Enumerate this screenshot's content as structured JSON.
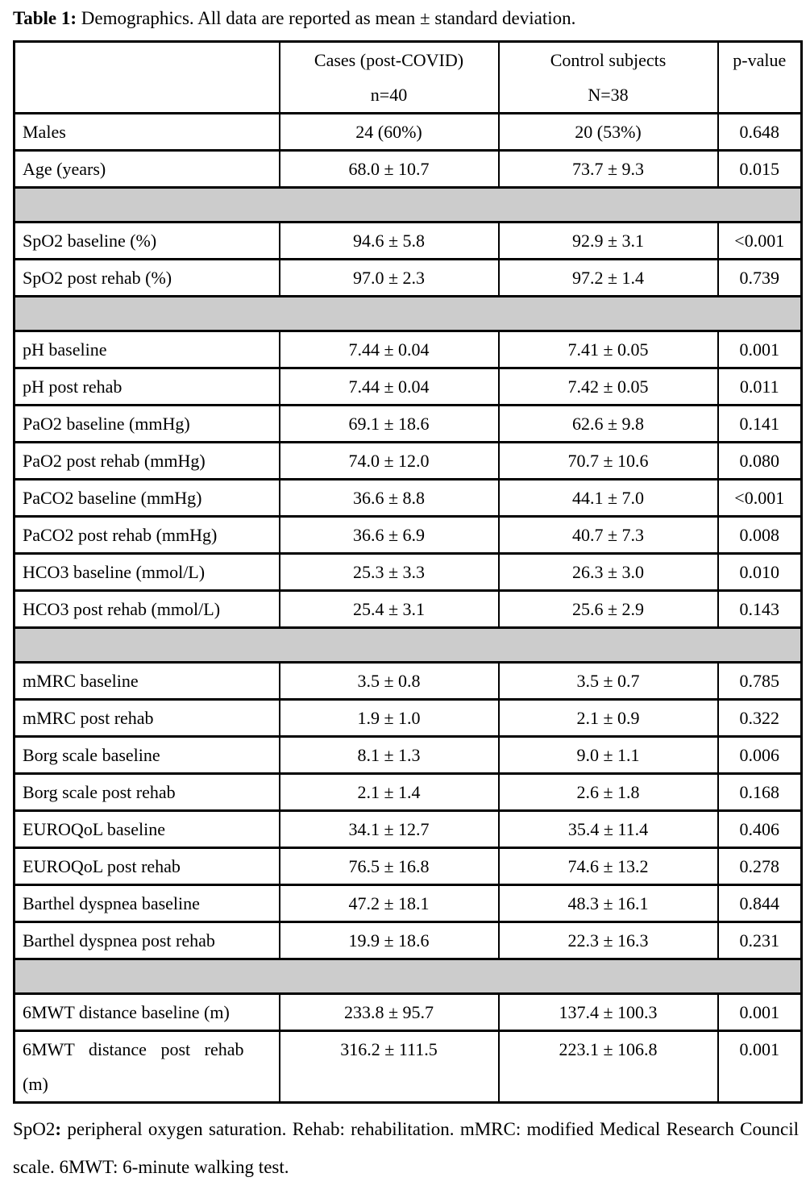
{
  "caption": {
    "label": "Table 1:",
    "text": " Demographics. All data are reported as mean ± standard deviation."
  },
  "table": {
    "columns": [
      {
        "label": "",
        "sub": ""
      },
      {
        "label": "Cases (post-COVID)",
        "sub": "n=40"
      },
      {
        "label": "Control subjects",
        "sub": "N=38"
      },
      {
        "label": "p-value",
        "sub": ""
      }
    ],
    "rows": [
      {
        "type": "data",
        "cells": [
          "Males",
          "24 (60%)",
          "20 (53%)",
          "0.648"
        ]
      },
      {
        "type": "data",
        "cells": [
          "Age (years)",
          "68.0 ± 10.7",
          "73.7 ± 9.3",
          "0.015"
        ]
      },
      {
        "type": "separator"
      },
      {
        "type": "data",
        "cells": [
          "SpO2 baseline (%)",
          "94.6 ± 5.8",
          "92.9 ± 3.1",
          "<0.001"
        ]
      },
      {
        "type": "data",
        "cells": [
          "SpO2 post rehab (%)",
          "97.0 ± 2.3",
          "97.2 ± 1.4",
          "0.739"
        ]
      },
      {
        "type": "separator"
      },
      {
        "type": "data",
        "cells": [
          "pH baseline",
          "7.44 ± 0.04",
          "7.41 ± 0.05",
          "0.001"
        ]
      },
      {
        "type": "data",
        "cells": [
          "pH post rehab",
          "7.44 ± 0.04",
          "7.42 ± 0.05",
          "0.011"
        ]
      },
      {
        "type": "data",
        "cells": [
          "PaO2 baseline (mmHg)",
          "69.1 ± 18.6",
          "62.6 ± 9.8",
          "0.141"
        ]
      },
      {
        "type": "data",
        "cells": [
          "PaO2 post rehab (mmHg)",
          "74.0 ± 12.0",
          "70.7 ± 10.6",
          "0.080"
        ]
      },
      {
        "type": "data",
        "cells": [
          "PaCO2 baseline (mmHg)",
          "36.6 ± 8.8",
          "44.1 ± 7.0",
          "<0.001"
        ]
      },
      {
        "type": "data",
        "cells": [
          "PaCO2 post rehab (mmHg)",
          "36.6 ± 6.9",
          "40.7 ± 7.3",
          "0.008"
        ]
      },
      {
        "type": "data",
        "cells": [
          "HCO3 baseline (mmol/L)",
          "25.3 ± 3.3",
          "26.3 ± 3.0",
          "0.010"
        ]
      },
      {
        "type": "data",
        "cells": [
          "HCO3 post rehab (mmol/L)",
          "25.4 ± 3.1",
          "25.6 ± 2.9",
          "0.143"
        ]
      },
      {
        "type": "separator"
      },
      {
        "type": "data",
        "cells": [
          "mMRC baseline",
          "3.5 ± 0.8",
          "3.5 ± 0.7",
          "0.785"
        ]
      },
      {
        "type": "data",
        "cells": [
          "mMRC post rehab",
          "1.9 ± 1.0",
          "2.1 ± 0.9",
          "0.322"
        ]
      },
      {
        "type": "data",
        "cells": [
          "Borg scale baseline",
          "8.1 ± 1.3",
          "9.0 ± 1.1",
          "0.006"
        ]
      },
      {
        "type": "data",
        "cells": [
          "Borg scale post rehab",
          "2.1 ± 1.4",
          "2.6 ± 1.8",
          "0.168"
        ]
      },
      {
        "type": "data",
        "cells": [
          "EUROQoL baseline",
          "34.1 ± 12.7",
          "35.4 ± 11.4",
          "0.406"
        ]
      },
      {
        "type": "data",
        "cells": [
          "EUROQoL post rehab",
          "76.5 ± 16.8",
          "74.6 ± 13.2",
          "0.278"
        ]
      },
      {
        "type": "data",
        "cells": [
          "Barthel dyspnea baseline",
          "47.2 ± 18.1",
          "48.3 ± 16.1",
          "0.844"
        ]
      },
      {
        "type": "data",
        "cells": [
          "Barthel dyspnea post rehab",
          "19.9 ± 18.6",
          "22.3 ± 16.3",
          "0.231"
        ]
      },
      {
        "type": "separator"
      },
      {
        "type": "data",
        "cells": [
          "6MWT distance baseline (m)",
          "233.8 ± 95.7",
          "137.4 ± 100.3",
          "0.001"
        ]
      },
      {
        "type": "data",
        "tall": true,
        "label2": "(m)",
        "cells": [
          "6MWT distance post rehab",
          "316.2 ± 111.5",
          "223.1 ± 106.8",
          "0.001"
        ]
      }
    ]
  },
  "footnote": {
    "prefix": "SpO2",
    "colon": ":",
    "rest": " peripheral oxygen saturation. Rehab: rehabilitation. mMRC: modified Medical Research Council scale. 6MWT: 6-minute walking test."
  },
  "colors": {
    "separator_gray": "#cccccc",
    "border": "#000000",
    "background": "#ffffff"
  }
}
